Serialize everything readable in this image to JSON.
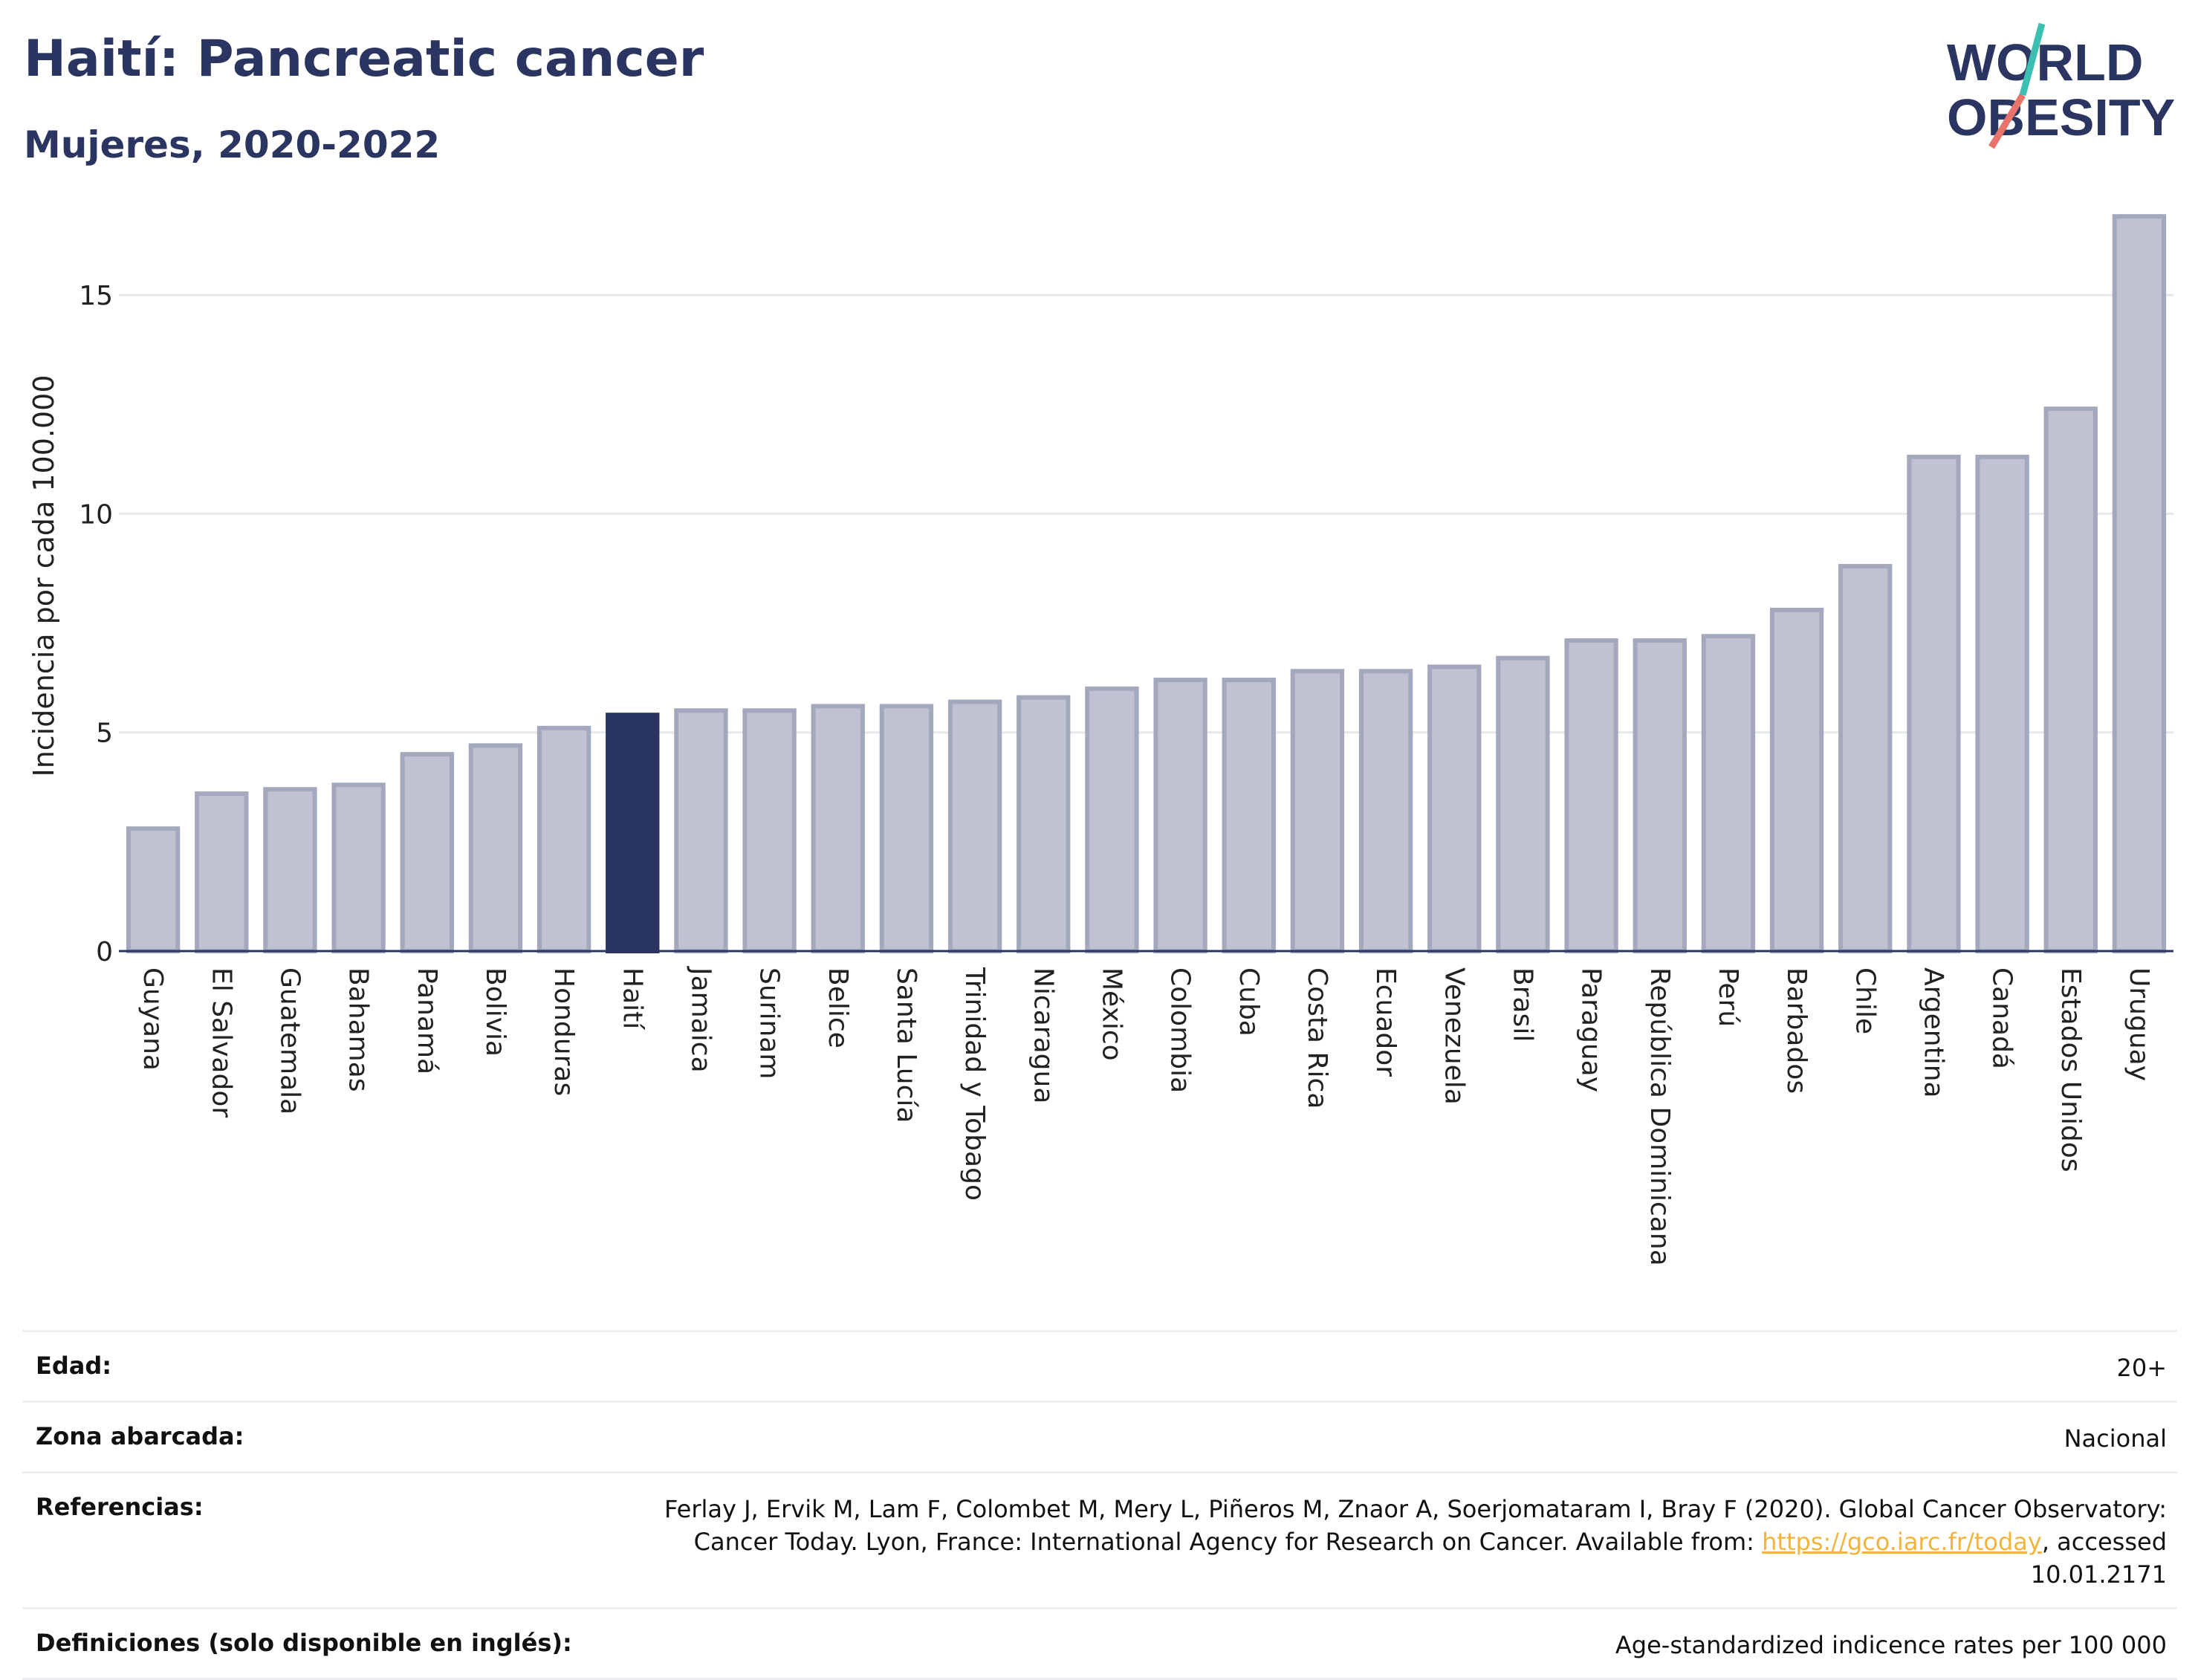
{
  "header": {
    "title": "Haití: Pancreatic cancer",
    "subtitle": "Mujeres, 2020-2022"
  },
  "logo": {
    "line1": "WORLD",
    "line2": "OBESITY"
  },
  "colors": {
    "highlight": "#2b3561",
    "bar": "#bfc3d1",
    "bar_border": "#a3a8bd",
    "link": "#f2b43c",
    "logo_red": "#e8736b",
    "logo_teal": "#3bbfb1"
  },
  "chart_data": {
    "type": "bar",
    "title": "Haití: Pancreatic cancer",
    "subtitle": "Mujeres, 2020-2022",
    "ylabel": "Incidencia por cada 100.000",
    "xlabel": "",
    "ylim": [
      0,
      17.5
    ],
    "yticks": [
      0,
      5,
      10,
      15
    ],
    "grid": true,
    "highlight": "Haití",
    "categories": [
      "Guyana",
      "El Salvador",
      "Guatemala",
      "Bahamas",
      "Panamá",
      "Bolivia",
      "Honduras",
      "Haití",
      "Jamaica",
      "Surinam",
      "Belice",
      "Santa Lucía",
      "Trinidad y Tobago",
      "Nicaragua",
      "México",
      "Colombia",
      "Cuba",
      "Costa Rica",
      "Ecuador",
      "Venezuela",
      "Brasil",
      "Paraguay",
      "República Dominicana",
      "Perú",
      "Barbados",
      "Chile",
      "Argentina",
      "Canadá",
      "Estados Unidos",
      "Uruguay"
    ],
    "values": [
      2.8,
      3.6,
      3.7,
      3.8,
      4.5,
      4.7,
      5.1,
      5.4,
      5.5,
      5.5,
      5.6,
      5.6,
      5.7,
      5.8,
      6.0,
      6.2,
      6.2,
      6.4,
      6.4,
      6.5,
      6.7,
      7.1,
      7.1,
      7.2,
      7.8,
      8.8,
      11.3,
      11.3,
      12.4,
      16.8
    ]
  },
  "info": {
    "age_label": "Edad:",
    "age_value": "20+",
    "zone_label": "Zona abarcada:",
    "zone_value": "Nacional",
    "refs_label": "Referencias:",
    "refs_text_1": "Ferlay J, Ervik M, Lam F, Colombet M, Mery L, Piñeros M, Znaor A, Soerjomataram I, Bray F (2020). Global Cancer Observatory: Cancer Today. Lyon, France: International Agency for Research on Cancer. Available from: ",
    "refs_link": "https://gco.iarc.fr/today",
    "refs_text_2": ", accessed 10.01.2171",
    "defs_label": "Definiciones (solo disponible en inglés):",
    "defs_value": "Age-standardized indicence rates per 100 000"
  }
}
